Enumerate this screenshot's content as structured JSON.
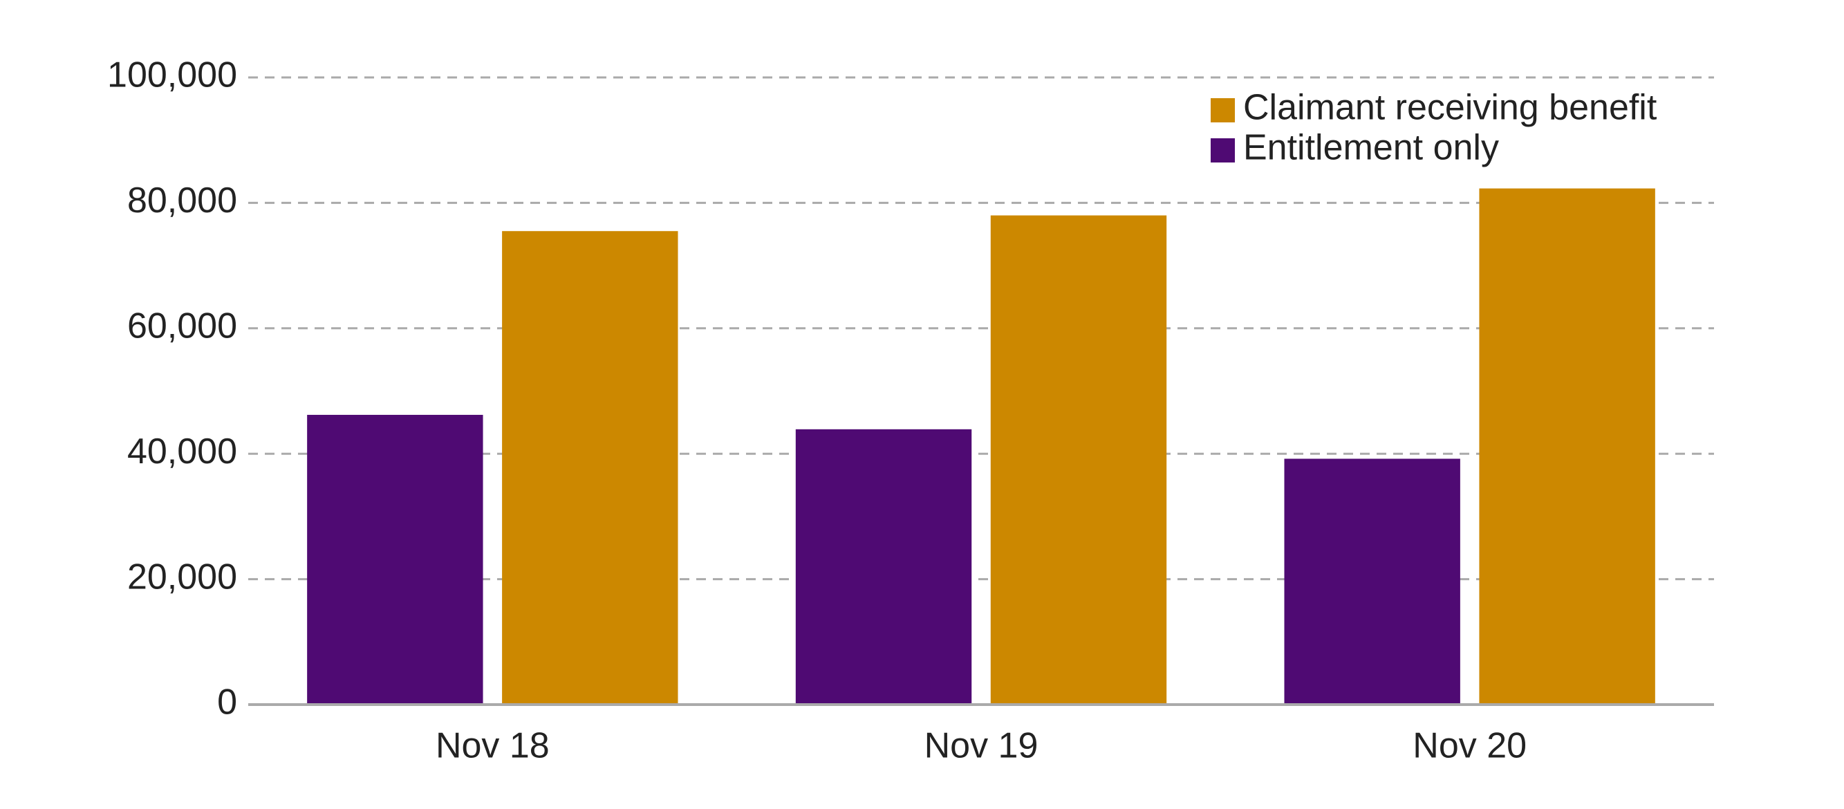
{
  "chart_data": {
    "type": "bar",
    "categories": [
      "Nov 18",
      "Nov 19",
      "Nov 20"
    ],
    "series": [
      {
        "name": "Entitlement only",
        "color": "#4f0a73",
        "values": [
          46200,
          43900,
          39200
        ]
      },
      {
        "name": "Claimant receiving benefit",
        "color": "#cc8800",
        "values": [
          75500,
          78000,
          82300
        ]
      }
    ],
    "ylim": [
      0,
      100000
    ],
    "yticks": [
      0,
      {
        "value": 20000,
        "label": "20,000"
      },
      {
        "value": 40000,
        "label": "40,000"
      },
      {
        "value": 60000,
        "label": "60,000"
      },
      {
        "value": 80000,
        "label": "80,000"
      },
      {
        "value": 100000,
        "label": "100,000"
      }
    ],
    "grid": true,
    "legend": "top-right"
  }
}
